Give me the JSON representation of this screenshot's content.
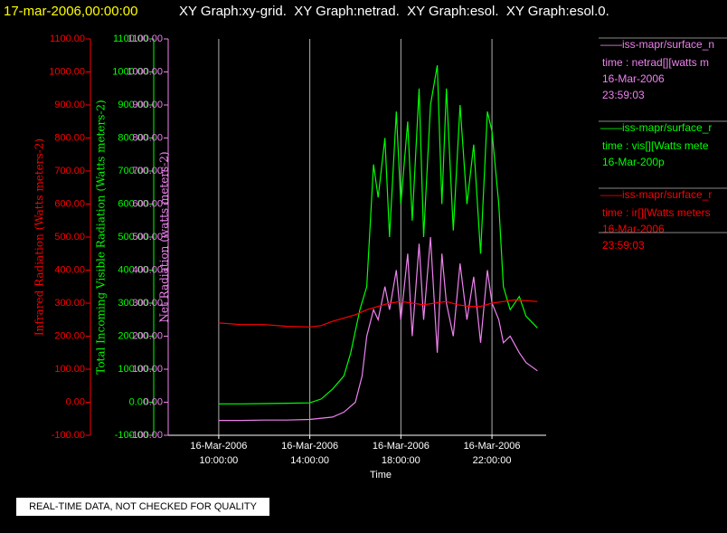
{
  "chart_data": {
    "type": "line",
    "title": "17-mar-2006,00:00:00",
    "subtitle": "XY Graph:xy-grid.  XY Graph:netrad.  XY Graph:esol.  XY Graph:esol.0.",
    "x_label": "Time",
    "xlim": [
      7.78,
      24.38
    ],
    "xticks": [
      {
        "value": 10,
        "label": "16-Mar-2006 10:00:00"
      },
      {
        "value": 14,
        "label": "16-Mar-2006 14:00:00"
      },
      {
        "value": 18,
        "label": "16-Mar-2006 18:00:00"
      },
      {
        "value": 22,
        "label": "16-Mar-2006 22:00:00"
      }
    ],
    "grid": true,
    "ylim": [
      -100,
      1100
    ],
    "yticks": [
      {
        "value": -100,
        "label": "-100.00"
      },
      {
        "value": 0,
        "label": "0.00"
      },
      {
        "value": 100,
        "label": "100.00"
      },
      {
        "value": 200,
        "label": "200.00"
      },
      {
        "value": 300,
        "label": "300.00"
      },
      {
        "value": 400,
        "label": "400.00"
      },
      {
        "value": 500,
        "label": "500.00"
      },
      {
        "value": 600,
        "label": "600.00"
      },
      {
        "value": 700,
        "label": "700.00"
      },
      {
        "value": 800,
        "label": "800.00"
      },
      {
        "value": 900,
        "label": "900.00"
      },
      {
        "value": 1000,
        "label": "1000.00"
      },
      {
        "value": 1100,
        "label": "1100.00"
      }
    ],
    "axes": [
      {
        "label": "Infrared Radiation (Watts meters-2)",
        "color": "#ff0000"
      },
      {
        "label": "Total Incoming Visible Radiation (Watts meters-2)",
        "color": "#00ff00"
      },
      {
        "label": "Net Radiation (watts meters-2)",
        "color": "#ee82ee"
      }
    ],
    "series": [
      {
        "name": "——iss-mapr/surface_n",
        "legend_text": [
          "time : netrad[][watts m",
          "16-Mar-2006",
          "23:59:03"
        ],
        "color": "#ee82ee",
        "x": [
          10,
          11,
          12,
          13,
          14,
          15,
          15.5,
          16,
          16.3,
          16.5,
          16.8,
          17,
          17.3,
          17.5,
          17.8,
          18,
          18.3,
          18.5,
          18.8,
          19,
          19.3,
          19.6,
          19.8,
          20,
          20.3,
          20.6,
          20.9,
          21.2,
          21.5,
          21.8,
          22,
          22.3,
          22.5,
          22.8,
          23.2,
          23.5,
          24
        ],
        "values": [
          -55,
          -55,
          -54,
          -54,
          -52,
          -45,
          -30,
          0,
          80,
          200,
          280,
          250,
          350,
          280,
          400,
          250,
          450,
          200,
          480,
          250,
          500,
          150,
          450,
          300,
          200,
          420,
          250,
          380,
          180,
          400,
          300,
          250,
          180,
          200,
          150,
          120,
          95
        ]
      },
      {
        "name": "——iss-mapr/surface_r",
        "legend_text": [
          "time : vis[][Watts mete",
          "16-Mar-200p"
        ],
        "color": "#00ff00",
        "x": [
          10,
          11,
          12,
          13,
          14,
          14.5,
          15,
          15.5,
          15.8,
          16.2,
          16.5,
          16.8,
          17,
          17.3,
          17.5,
          17.8,
          18,
          18.3,
          18.5,
          18.8,
          19,
          19.3,
          19.6,
          19.8,
          20,
          20.3,
          20.6,
          20.9,
          21.2,
          21.5,
          21.8,
          22,
          22.3,
          22.5,
          22.8,
          23.2,
          23.5,
          24
        ],
        "values": [
          -5,
          -5,
          -4,
          -3,
          -2,
          10,
          40,
          80,
          150,
          280,
          350,
          720,
          620,
          800,
          500,
          880,
          600,
          850,
          550,
          950,
          500,
          900,
          1020,
          600,
          950,
          520,
          900,
          600,
          780,
          450,
          880,
          820,
          600,
          350,
          280,
          320,
          260,
          225
        ]
      },
      {
        "name": "——iss-mapr/surface_r",
        "legend_text": [
          "time : ir[][Watts meters",
          "16-Mar-2006",
          "23:59:03"
        ],
        "color": "#ff0000",
        "x": [
          10,
          11,
          12,
          13,
          14,
          14.5,
          15,
          15.5,
          16,
          16.5,
          17,
          17.5,
          18,
          18.5,
          19,
          19.5,
          20,
          20.5,
          21,
          21.5,
          22,
          22.5,
          23,
          24
        ],
        "values": [
          240,
          235,
          235,
          230,
          228,
          232,
          245,
          255,
          265,
          280,
          290,
          300,
          305,
          300,
          295,
          300,
          305,
          295,
          290,
          290,
          300,
          305,
          310,
          305
        ]
      }
    ],
    "footer": "REAL-TIME DATA, NOT CHECKED FOR QUALITY"
  }
}
